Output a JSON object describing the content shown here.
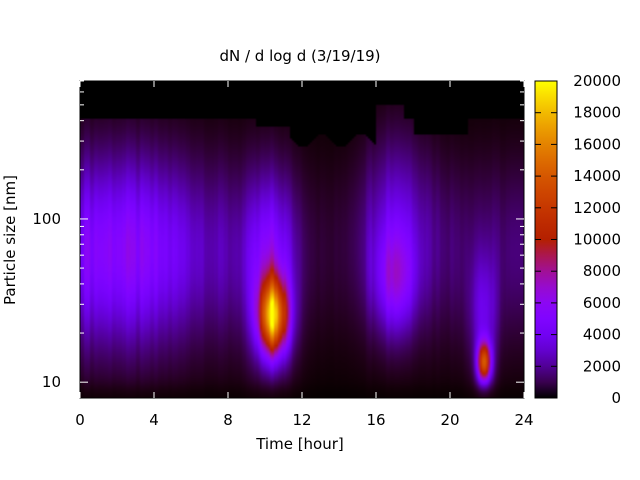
{
  "chart_data": {
    "type": "heatmap",
    "title": "dN / d log d (3/19/19)",
    "xlabel": "Time [hour]",
    "ylabel": "Particle size [nm]",
    "xlim": [
      0,
      24
    ],
    "ylim": [
      8,
      700
    ],
    "y_scale": "log",
    "x_ticks": [
      0,
      4,
      8,
      12,
      16,
      20,
      24
    ],
    "y_ticks": [
      10,
      100
    ],
    "grid": false,
    "colorbar": {
      "min": 0,
      "max": 20000,
      "ticks": [
        0,
        2000,
        4000,
        6000,
        8000,
        10000,
        12000,
        14000,
        16000,
        18000,
        20000
      ],
      "colormap": "gnuplot pm3d (black-purple-red-yellow)"
    },
    "features": [
      {
        "x": 1.5,
        "y": 60,
        "value": 4500
      },
      {
        "x": 10.5,
        "y": 25,
        "value": 17000
      },
      {
        "x": 17,
        "y": 40,
        "value": 5500
      },
      {
        "x": 21.8,
        "y": 13,
        "value": 13000
      }
    ]
  }
}
